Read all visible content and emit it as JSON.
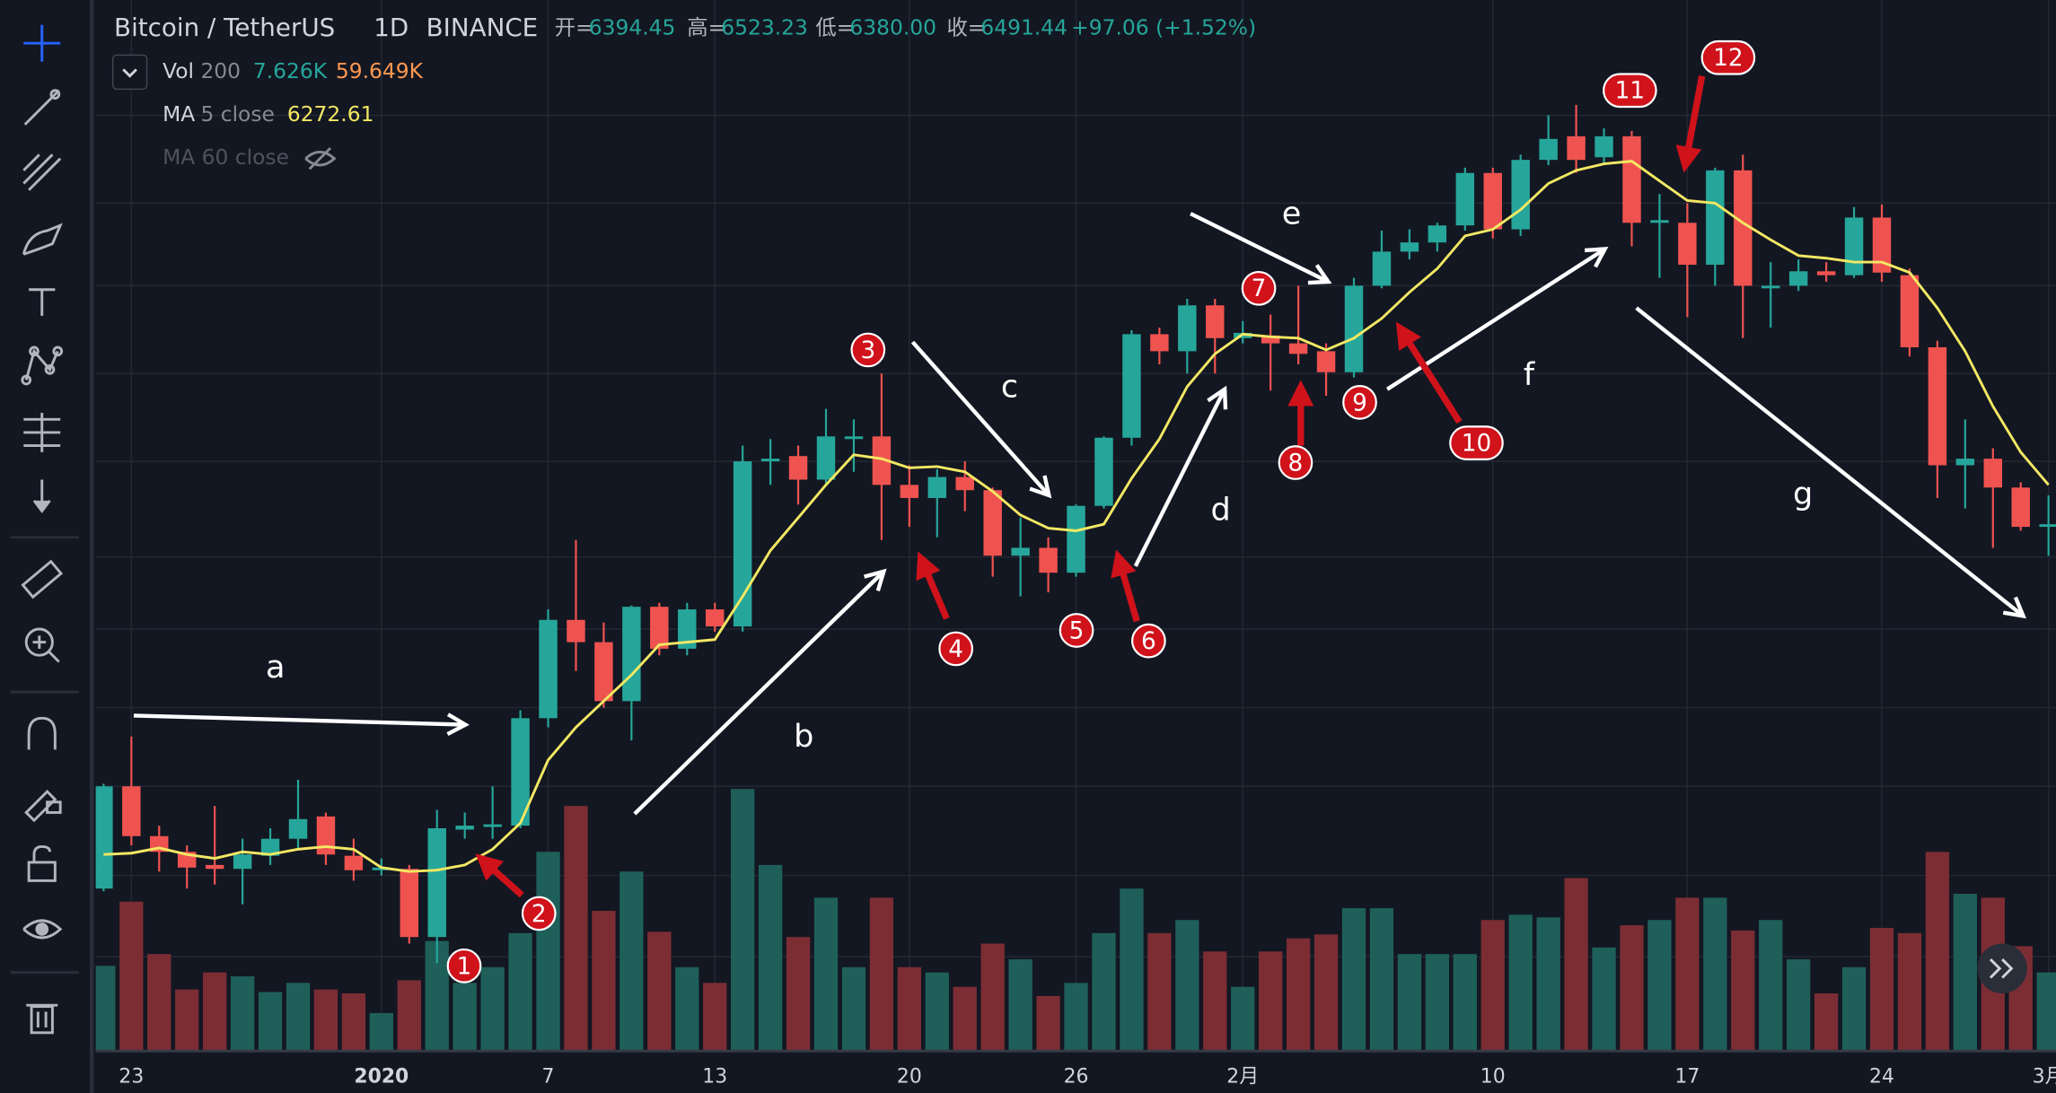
{
  "header": {
    "symbol": "Bitcoin / TetherUS",
    "interval": "1D",
    "exchange": "BINANCE",
    "ohlc": [
      {
        "label": "开=",
        "value": "6394.45"
      },
      {
        "label": "高=",
        "value": "6523.23"
      },
      {
        "label": "低=",
        "value": "6380.00"
      },
      {
        "label": "收=",
        "value": "6491.44"
      }
    ],
    "change": "+97.06 (+1.52%)",
    "vol_name": "Vol",
    "vol_length": "200",
    "vol_value": "7.626K",
    "vol_ma_value": "59.649K",
    "ma_name": "MA",
    "ma_params": "5 close",
    "ma_value": "6272.61",
    "ma60_name": "MA 60 close"
  },
  "chart_data": {
    "type": "candlestick",
    "categories": [
      null,
      "23",
      null,
      null,
      null,
      null,
      null,
      null,
      null,
      null,
      "2020",
      null,
      null,
      null,
      null,
      null,
      "7",
      null,
      null,
      null,
      null,
      null,
      "13",
      null,
      null,
      null,
      null,
      null,
      null,
      "20",
      null,
      null,
      null,
      null,
      null,
      "26",
      null,
      null,
      null,
      null,
      null,
      "2月",
      null,
      null,
      null,
      null,
      null,
      null,
      null,
      null,
      "10",
      null,
      null,
      null,
      null,
      null,
      null,
      "17",
      null,
      null,
      null,
      null,
      null,
      null,
      "24",
      null,
      null,
      null,
      null,
      null,
      "3月"
    ],
    "open": [
      7410,
      7800,
      7610,
      7550,
      7500,
      7485,
      7535,
      7600,
      7685,
      7535,
      7480,
      7485,
      7225,
      7635,
      7645,
      7650,
      8060,
      8435,
      8350,
      8125,
      8485,
      8325,
      8475,
      8410,
      9040,
      9060,
      8970,
      9125,
      9135,
      8950,
      8900,
      8980,
      8930,
      8680,
      8710,
      8615,
      8870,
      9130,
      9525,
      9460,
      9635,
      9510,
      9520,
      9490,
      9460,
      9380,
      9710,
      9840,
      9875,
      9940,
      10140,
      9925,
      10190,
      10280,
      10200,
      10280,
      9950,
      9950,
      9790,
      10150,
      9700,
      9710,
      9765,
      9750,
      9970,
      9750,
      9475,
      9025,
      9050,
      8940,
      8790
    ],
    "high": [
      7810,
      7990,
      7650,
      7575,
      7725,
      7600,
      7640,
      7825,
      7700,
      7600,
      7525,
      7500,
      7710,
      7700,
      7800,
      8090,
      8475,
      8740,
      8425,
      8490,
      8500,
      8500,
      8500,
      9100,
      9125,
      9100,
      9240,
      9200,
      9375,
      9025,
      9010,
      9040,
      8940,
      8825,
      8750,
      8875,
      9135,
      9540,
      9550,
      9660,
      9660,
      9575,
      9600,
      9710,
      9490,
      9740,
      9920,
      9925,
      9950,
      10160,
      10160,
      10210,
      10360,
      10400,
      10310,
      10300,
      10060,
      10025,
      10160,
      10210,
      9800,
      9810,
      9800,
      10010,
      10020,
      9775,
      9500,
      9200,
      9090,
      8960,
      8910
    ],
    "low": [
      7400,
      7575,
      7475,
      7410,
      7425,
      7350,
      7500,
      7560,
      7500,
      7440,
      7460,
      7200,
      7125,
      7600,
      7600,
      7640,
      8025,
      8240,
      8100,
      7975,
      8300,
      8300,
      8390,
      8390,
      8950,
      8875,
      8950,
      9000,
      8740,
      8790,
      8750,
      8850,
      8600,
      8525,
      8540,
      8600,
      8860,
      9100,
      9410,
      9375,
      9375,
      9490,
      9310,
      9410,
      9290,
      9360,
      9700,
      9810,
      9840,
      9920,
      9890,
      9900,
      10170,
      10140,
      10170,
      9860,
      9740,
      9590,
      9710,
      9510,
      9550,
      9690,
      9725,
      9740,
      9725,
      9440,
      8900,
      8860,
      8710,
      8775,
      8680
    ],
    "close": [
      7800,
      7610,
      7550,
      7490,
      7485,
      7540,
      7600,
      7675,
      7540,
      7480,
      7490,
      7225,
      7640,
      7650,
      7655,
      8060,
      8435,
      8350,
      8125,
      8485,
      8325,
      8475,
      8410,
      9040,
      9050,
      8970,
      9135,
      9135,
      8950,
      8900,
      8980,
      8930,
      8680,
      8710,
      8615,
      8870,
      9130,
      9525,
      9460,
      9635,
      9510,
      9530,
      9490,
      9450,
      9380,
      9710,
      9840,
      9875,
      9940,
      10140,
      9925,
      10190,
      10270,
      10190,
      10280,
      9950,
      9960,
      9790,
      10150,
      9710,
      9710,
      9765,
      9750,
      9970,
      9760,
      9475,
      9025,
      9050,
      8940,
      8790,
      8800
    ],
    "ma5": [
      7540,
      7545,
      7565,
      7540,
      7525,
      7550,
      7540,
      7560,
      7570,
      7560,
      7490,
      7475,
      7480,
      7500,
      7560,
      7660,
      7900,
      8025,
      8125,
      8225,
      8340,
      8350,
      8360,
      8525,
      8700,
      8825,
      8950,
      9065,
      9050,
      9015,
      9020,
      9000,
      8925,
      8835,
      8785,
      8775,
      8800,
      8975,
      9125,
      9325,
      9450,
      9525,
      9515,
      9510,
      9465,
      9510,
      9585,
      9685,
      9775,
      9900,
      9925,
      10000,
      10100,
      10150,
      10175,
      10185,
      10110,
      10035,
      10025,
      9950,
      9885,
      9825,
      9815,
      9800,
      9800,
      9760,
      9625,
      9460,
      9250,
      9075,
      8950
    ],
    "volume": [
      32.5,
      57,
      37,
      23.5,
      30,
      28.5,
      22.5,
      26,
      23.5,
      22,
      14.5,
      27,
      42,
      26,
      32,
      45,
      76,
      93.5,
      53.5,
      68.5,
      45.5,
      32,
      26,
      100,
      71,
      43.5,
      58.5,
      32,
      58.5,
      32,
      30,
      24.5,
      41,
      35,
      21,
      26,
      45,
      62,
      45,
      50,
      38,
      24.5,
      38,
      43,
      44.5,
      54.5,
      54.5,
      37,
      37,
      37,
      50,
      52,
      51,
      66,
      39.5,
      48,
      50,
      58.5,
      58.5,
      46,
      50,
      35,
      22,
      32,
      47,
      45,
      76,
      60,
      58.5,
      40,
      30
    ],
    "ylim": [
      6800,
      10800
    ],
    "vol_ylim": [
      0,
      100
    ],
    "up_color": "#26a69a",
    "down_color": "#ef5350",
    "vol_up_color": "#1f5f5a",
    "vol_down_color": "#7c2d34",
    "ma_color": "#f3e863",
    "grid": true
  },
  "annotations": {
    "letters": [
      "a",
      "b",
      "c",
      "d",
      "e",
      "f",
      "g"
    ],
    "markers": [
      "1",
      "2",
      "3",
      "4",
      "5",
      "6",
      "7",
      "8",
      "9",
      "10",
      "11",
      "12"
    ]
  }
}
